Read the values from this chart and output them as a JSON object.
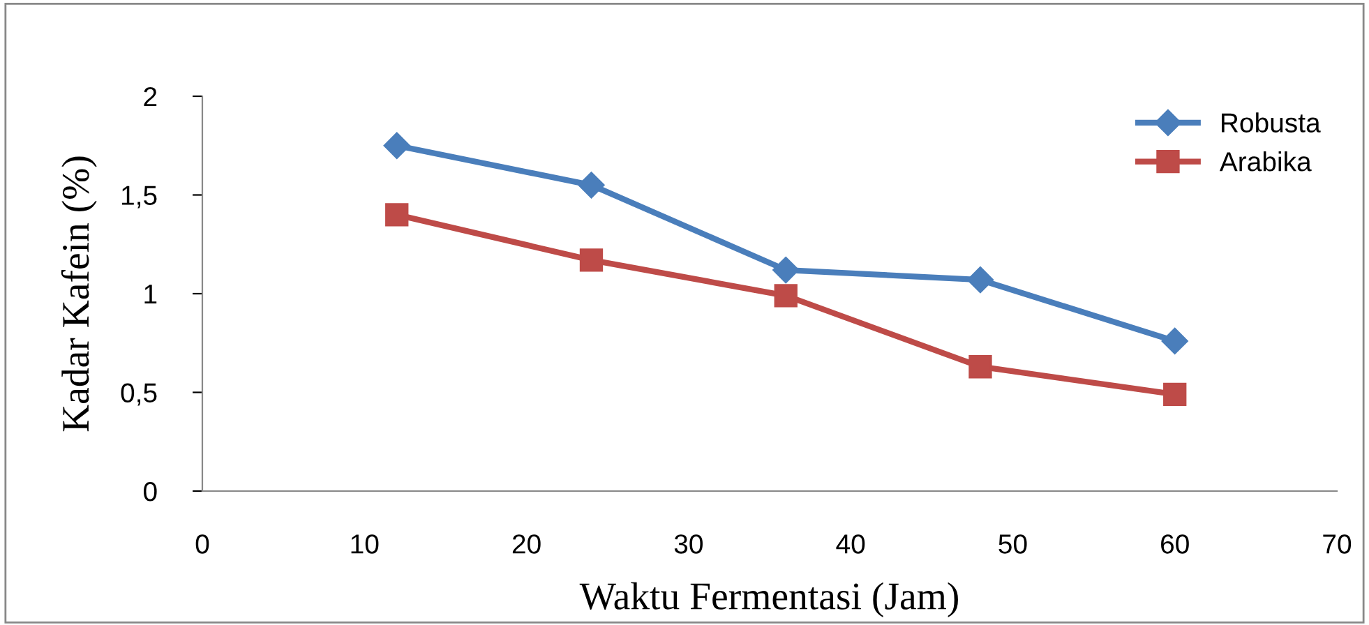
{
  "chart_data": {
    "type": "line",
    "xlabel": "Waktu Fermentasi (Jam)",
    "ylabel": "Kadar Kafein (%)",
    "x": [
      12,
      24,
      36,
      48,
      60
    ],
    "series": [
      {
        "name": "Robusta",
        "color": "#4a7ebb",
        "marker": "diamond",
        "values": [
          1.75,
          1.55,
          1.12,
          1.07,
          0.76
        ]
      },
      {
        "name": "Arabika",
        "color": "#be4b48",
        "marker": "square",
        "values": [
          1.4,
          1.17,
          0.99,
          0.63,
          0.49
        ]
      }
    ],
    "xlim": [
      0,
      70
    ],
    "xticks": [
      0,
      10,
      20,
      30,
      40,
      50,
      60,
      70
    ],
    "ylim": [
      0,
      2
    ],
    "yticks": [
      0,
      {
        "value": 0.5,
        "label": "0,5"
      },
      1,
      {
        "value": 1.5,
        "label": "1,5"
      },
      2
    ],
    "grid": false,
    "legend": "top right",
    "line_style": "solid"
  }
}
